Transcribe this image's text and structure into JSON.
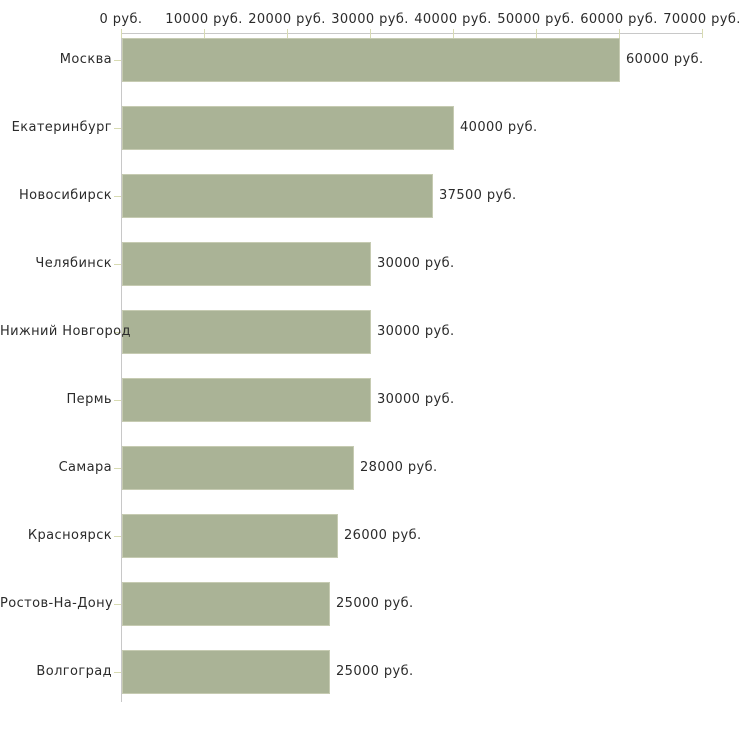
{
  "chart_data": {
    "type": "bar",
    "orientation": "horizontal",
    "title": "",
    "xlabel": "",
    "ylabel": "",
    "unit": "руб.",
    "categories": [
      "Москва",
      "Екатеринбург",
      "Новосибирск",
      "Челябинск",
      "Нижний Новгород",
      "Пермь",
      "Самара",
      "Красноярск",
      "Ростов-На-Дону",
      "Волгоград"
    ],
    "values": [
      60000,
      40000,
      37500,
      30000,
      30000,
      30000,
      28000,
      26000,
      25000,
      25000
    ],
    "value_labels": [
      "60000 руб.",
      "40000 руб.",
      "37500 руб.",
      "30000 руб.",
      "30000 руб.",
      "30000 руб.",
      "28000 руб.",
      "26000 руб.",
      "25000 руб.",
      "25000 руб."
    ],
    "x_axis": {
      "position": "top",
      "range": [
        0,
        70000
      ],
      "ticks": [
        0,
        10000,
        20000,
        30000,
        40000,
        50000,
        60000,
        70000
      ],
      "tick_labels": [
        "0 руб.",
        "10000 руб.",
        "20000 руб.",
        "30000 руб.",
        "40000 руб.",
        "50000 руб.",
        "60000 руб.",
        "70000 руб."
      ]
    },
    "grid": false,
    "legend": "none",
    "colors": {
      "bar_fill": "#aab396",
      "bar_border": "#c6cbb2",
      "tick_mark": "#d8dbb2",
      "axis_line": "#c8c8c8",
      "text": "#2b2b2b"
    }
  }
}
